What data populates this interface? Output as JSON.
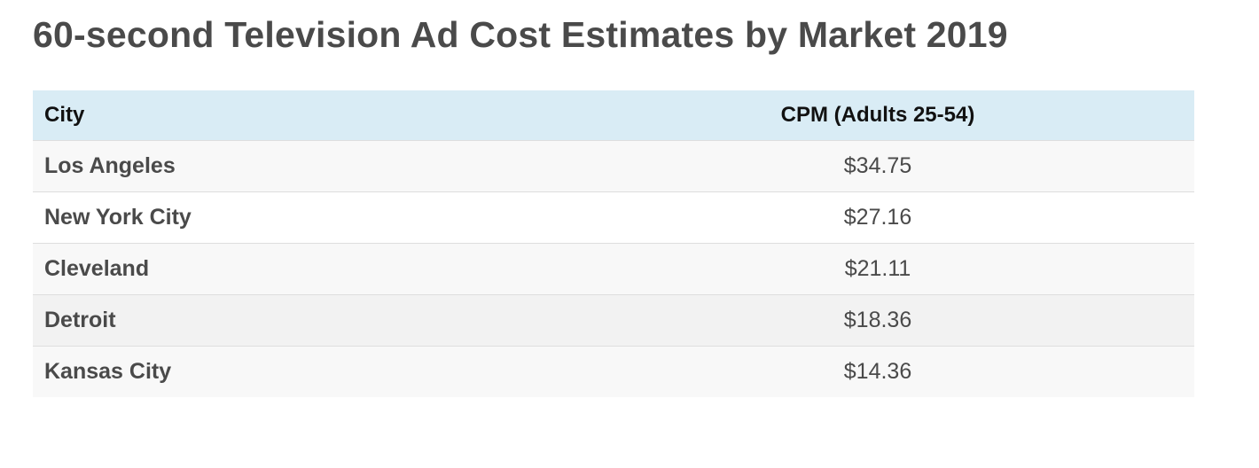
{
  "title": "60-second Television Ad Cost Estimates by Market 2019",
  "table": {
    "headers": {
      "city": "City",
      "cpm": "CPM (Adults 25-54)"
    },
    "rows": [
      {
        "city": "Los Angeles",
        "cpm": "$34.75"
      },
      {
        "city": "New York City",
        "cpm": "$27.16"
      },
      {
        "city": "Cleveland",
        "cpm": "$21.11"
      },
      {
        "city": "Detroit",
        "cpm": "$18.36"
      },
      {
        "city": "Kansas City",
        "cpm": "$14.36"
      }
    ]
  },
  "colors": {
    "header_background": "#d9ecf5",
    "text": "#4a4a4a",
    "header_text": "#111111"
  }
}
